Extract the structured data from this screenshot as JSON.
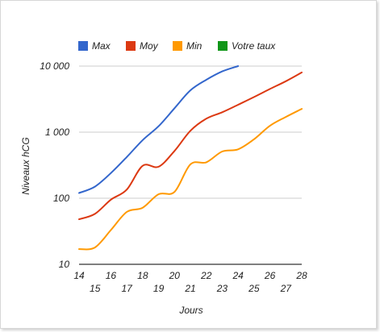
{
  "chart_data": {
    "type": "line",
    "title": "",
    "xlabel": "Jours",
    "ylabel": "Niveaux hCG",
    "y_scale": "log",
    "ylim": [
      10,
      10000
    ],
    "xlim": [
      14,
      28
    ],
    "y_ticks": [
      {
        "value": 10,
        "label": "10"
      },
      {
        "value": 100,
        "label": "100"
      },
      {
        "value": 1000,
        "label": "1 000"
      },
      {
        "value": 10000,
        "label": "10 000"
      }
    ],
    "x_ticks": [
      {
        "value": 14,
        "label": "14"
      },
      {
        "value": 15,
        "label": "15"
      },
      {
        "value": 16,
        "label": "16"
      },
      {
        "value": 17,
        "label": "17"
      },
      {
        "value": 18,
        "label": "18"
      },
      {
        "value": 19,
        "label": "19"
      },
      {
        "value": 20,
        "label": "20"
      },
      {
        "value": 21,
        "label": "21"
      },
      {
        "value": 22,
        "label": "22"
      },
      {
        "value": 23,
        "label": "23"
      },
      {
        "value": 24,
        "label": "24"
      },
      {
        "value": 25,
        "label": "25"
      },
      {
        "value": 26,
        "label": "26"
      },
      {
        "value": 27,
        "label": "27"
      },
      {
        "value": 28,
        "label": "28"
      }
    ],
    "legend_position": "top",
    "grid": true,
    "series": [
      {
        "name": "Max",
        "color": "#3366cc",
        "x": [
          14,
          15,
          16,
          17,
          18,
          19,
          20,
          21,
          22,
          23,
          24
        ],
        "y": [
          120,
          150,
          240,
          420,
          760,
          1230,
          2300,
          4300,
          6200,
          8300,
          10000
        ]
      },
      {
        "name": "Moy",
        "color": "#dc3912",
        "x": [
          14,
          15,
          16,
          17,
          18,
          19,
          20,
          21,
          22,
          23,
          24,
          25,
          26,
          27,
          28
        ],
        "y": [
          48,
          58,
          95,
          135,
          310,
          300,
          520,
          1050,
          1600,
          2000,
          2600,
          3400,
          4500,
          5900,
          8000
        ]
      },
      {
        "name": "Min",
        "color": "#ff9900",
        "x": [
          14,
          15,
          16,
          17,
          18,
          19,
          20,
          21,
          22,
          23,
          24,
          25,
          26,
          27,
          28
        ],
        "y": [
          17,
          18,
          33,
          62,
          72,
          115,
          125,
          325,
          350,
          510,
          550,
          780,
          1250,
          1700,
          2250
        ]
      },
      {
        "name": "Votre taux",
        "color": "#109618",
        "x": [],
        "y": []
      }
    ]
  }
}
